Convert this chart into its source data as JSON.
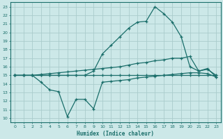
{
  "background_color": "#cce8e8",
  "grid_color": "#aacccc",
  "line_color": "#1a6e6a",
  "xlabel": "Humidex (Indice chaleur)",
  "xlim": [
    -0.5,
    23.5
  ],
  "ylim": [
    9.5,
    23.5
  ],
  "yticks": [
    10,
    11,
    12,
    13,
    14,
    15,
    16,
    17,
    18,
    19,
    20,
    21,
    22,
    23
  ],
  "xticks": [
    0,
    1,
    2,
    3,
    4,
    5,
    6,
    7,
    8,
    9,
    10,
    11,
    12,
    13,
    14,
    15,
    16,
    17,
    18,
    19,
    20,
    21,
    22,
    23
  ],
  "line_bottom_x": [
    0,
    1,
    2,
    3,
    4,
    5,
    6,
    7,
    8,
    9,
    10,
    11,
    12,
    13,
    14,
    15,
    16,
    17,
    18,
    19,
    20,
    21,
    22,
    23
  ],
  "line_bottom_y": [
    15.0,
    15.0,
    15.0,
    14.2,
    13.3,
    13.1,
    10.2,
    12.2,
    12.2,
    11.1,
    14.2,
    14.3,
    14.4,
    14.5,
    14.7,
    14.8,
    14.9,
    15.0,
    15.1,
    15.2,
    15.3,
    15.3,
    15.2,
    14.8
  ],
  "line_flat_x": [
    0,
    1,
    2,
    3,
    4,
    5,
    6,
    7,
    8,
    9,
    10,
    11,
    12,
    13,
    14,
    15,
    16,
    17,
    18,
    19,
    20,
    21,
    22,
    23
  ],
  "line_flat_y": [
    15.0,
    15.0,
    15.0,
    15.0,
    15.0,
    15.0,
    15.0,
    15.0,
    15.0,
    15.0,
    15.0,
    15.0,
    15.0,
    15.0,
    15.0,
    15.0,
    15.0,
    15.0,
    15.0,
    15.0,
    15.0,
    15.0,
    15.0,
    15.0
  ],
  "line_mid_x": [
    0,
    1,
    2,
    3,
    4,
    5,
    6,
    7,
    8,
    9,
    10,
    11,
    12,
    13,
    14,
    15,
    16,
    17,
    18,
    19,
    20,
    21,
    22,
    23
  ],
  "line_mid_y": [
    15.0,
    15.0,
    15.0,
    15.1,
    15.2,
    15.3,
    15.4,
    15.5,
    15.6,
    15.7,
    15.8,
    15.9,
    16.0,
    16.2,
    16.4,
    16.5,
    16.7,
    16.8,
    17.0,
    17.0,
    17.2,
    15.5,
    15.7,
    15.0
  ],
  "line_top_x": [
    0,
    1,
    2,
    3,
    4,
    5,
    6,
    7,
    8,
    9,
    10,
    11,
    12,
    13,
    14,
    15,
    16,
    17,
    18,
    19,
    20,
    21,
    22,
    23
  ],
  "line_top_y": [
    15.0,
    15.0,
    15.0,
    15.0,
    15.0,
    15.0,
    15.0,
    15.0,
    15.0,
    15.5,
    17.5,
    18.5,
    19.5,
    20.5,
    21.2,
    21.3,
    23.0,
    22.2,
    21.2,
    19.5,
    16.0,
    15.5,
    15.8,
    14.8
  ]
}
